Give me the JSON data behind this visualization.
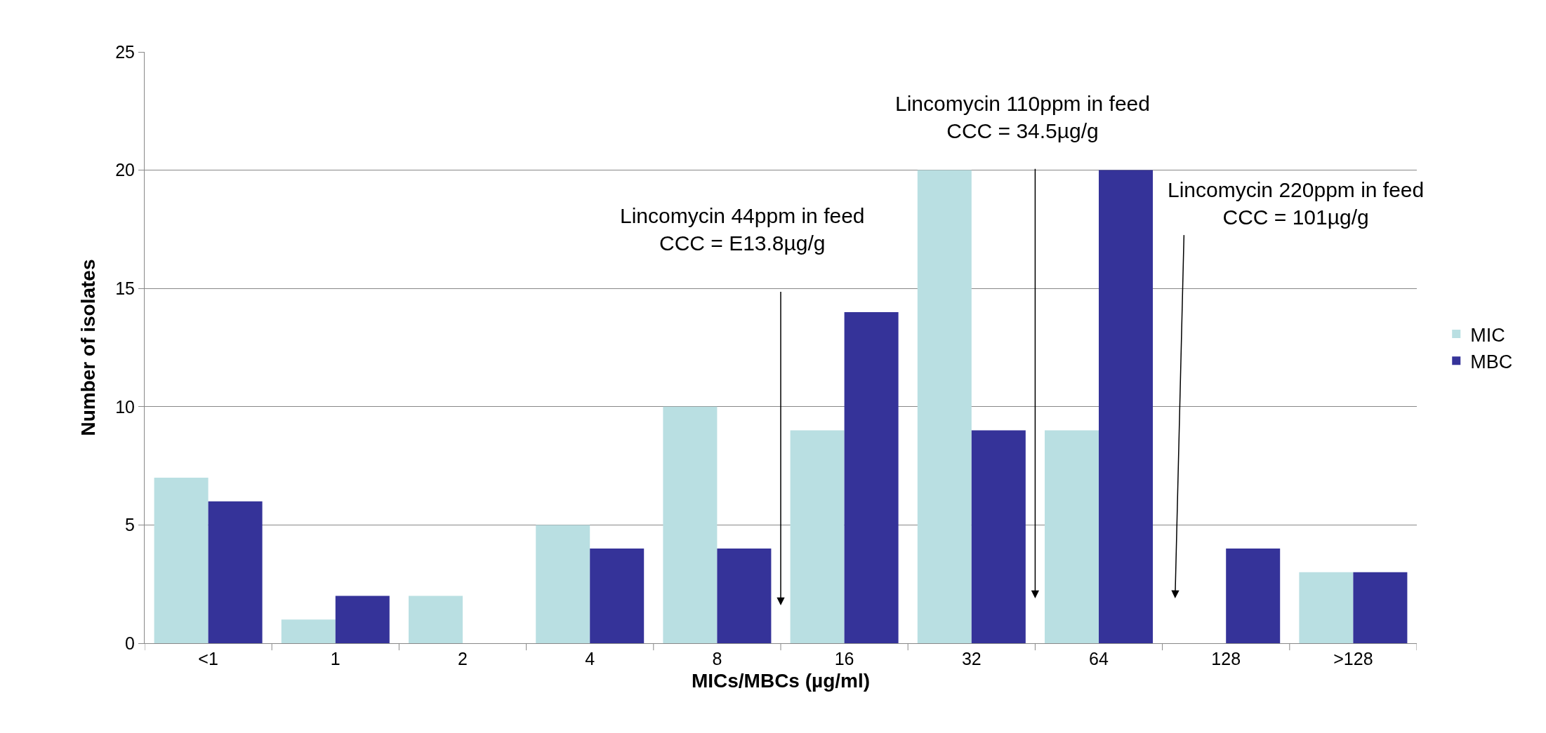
{
  "chart_data": {
    "type": "bar",
    "xlabel": "MICs/MBCs (µg/ml)",
    "ylabel": "Number of isolates",
    "categories": [
      "<1",
      "1",
      "2",
      "4",
      "8",
      "16",
      "32",
      "64",
      "128",
      ">128"
    ],
    "series": [
      {
        "name": "MIC",
        "color": "#b9dfe2",
        "values": [
          7,
          1,
          2,
          5,
          10,
          9,
          20,
          9,
          0,
          3
        ]
      },
      {
        "name": "MBC",
        "color": "#353399",
        "values": [
          6,
          2,
          0,
          4,
          4,
          14,
          9,
          20,
          4,
          3
        ]
      }
    ],
    "annotations": [
      "Lincomycin 44ppm in feed\nCCC = E13.8µg/g",
      "Lincomycin 110ppm in feed\nCCC = 34.5µg/g",
      "Lincomycin 220ppm in feed\nCCC = 101µg/g"
    ],
    "ylim": [
      0,
      25
    ],
    "yticks": [
      0,
      5,
      10,
      15,
      20,
      25
    ],
    "grid": "y",
    "legend": "right"
  }
}
